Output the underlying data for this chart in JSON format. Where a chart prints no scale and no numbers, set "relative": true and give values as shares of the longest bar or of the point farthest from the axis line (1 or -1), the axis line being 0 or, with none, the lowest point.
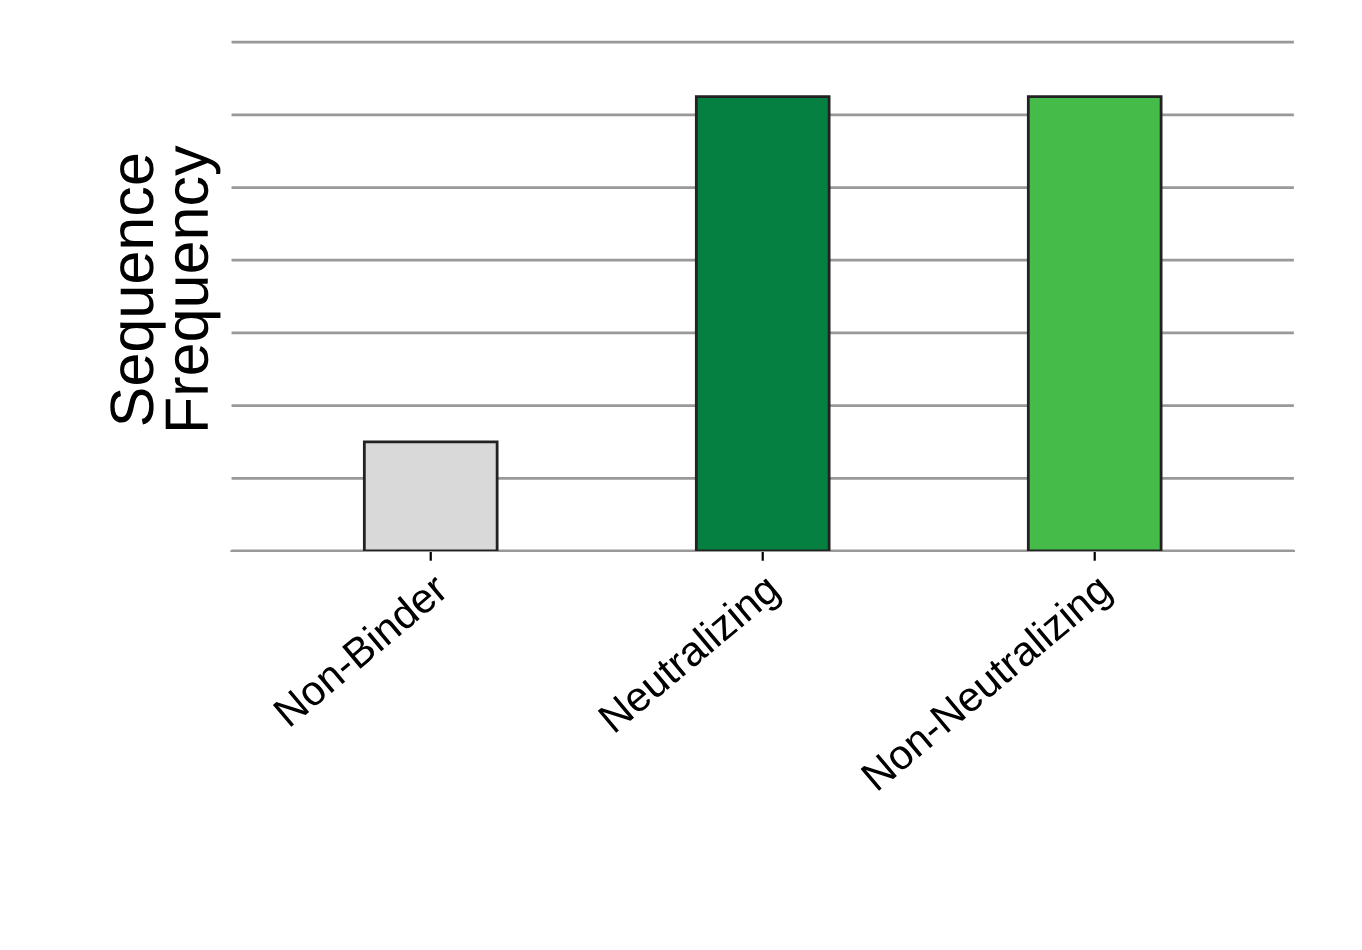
{
  "chart_data": {
    "type": "bar",
    "ylabel": "Sequence\nFrequency",
    "relative": true,
    "grid": "y",
    "categories": [
      "Non-Binder",
      "Neutralizing",
      "Non-Neutralizing"
    ],
    "values": [
      0.24,
      1,
      1
    ],
    "colors": [
      "#d9d9d9",
      "#068041",
      "#45bb4a"
    ]
  }
}
